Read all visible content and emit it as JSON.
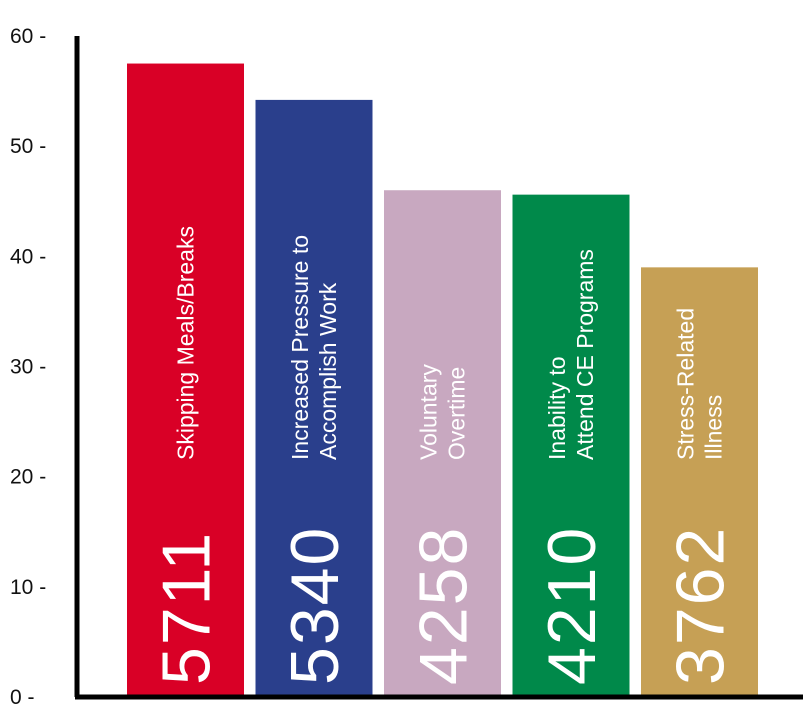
{
  "chart_data": {
    "type": "bar",
    "title": "",
    "xlabel": "",
    "ylabel": "",
    "ylim": [
      0,
      60
    ],
    "yticks": [
      {
        "value": 0,
        "label": "0 -"
      },
      {
        "value": 10,
        "label": "10 -"
      },
      {
        "value": 20,
        "label": "20 -"
      },
      {
        "value": 30,
        "label": "30 -"
      },
      {
        "value": 40,
        "label": "40 -"
      },
      {
        "value": 50,
        "label": "50 -"
      },
      {
        "value": 60,
        "label": "60 -"
      }
    ],
    "grid": false,
    "legend": "none",
    "bars": [
      {
        "lines": [
          "Skipping Meals/Breaks"
        ],
        "count": "5711",
        "value": 57.5,
        "color": "#d90026"
      },
      {
        "lines": [
          "Increased Pressure to",
          "Accomplish Work"
        ],
        "count": "5340",
        "value": 54.2,
        "color": "#2a3f8c"
      },
      {
        "lines": [
          "Voluntary",
          "Overtime"
        ],
        "count": "4258",
        "value": 46.0,
        "color": "#c8a8c0"
      },
      {
        "lines": [
          "Inability to",
          "Attend CE Programs"
        ],
        "count": "4210",
        "value": 45.6,
        "color": "#00894a"
      },
      {
        "lines": [
          "Stress-Related",
          "Illness"
        ],
        "count": "3762",
        "value": 39.0,
        "color": "#c6a055"
      }
    ]
  }
}
